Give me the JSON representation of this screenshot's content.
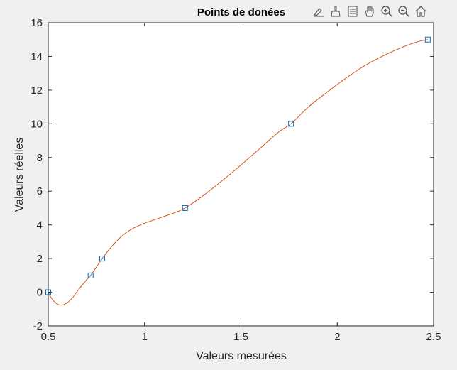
{
  "toolbar": {
    "buttons": [
      {
        "icon": "edit-plot-icon"
      },
      {
        "icon": "brush-icon"
      },
      {
        "icon": "data-tips-icon"
      },
      {
        "icon": "pan-hand-icon"
      },
      {
        "icon": "zoom-in-icon"
      },
      {
        "icon": "zoom-out-icon"
      },
      {
        "icon": "home-icon"
      }
    ]
  },
  "chart_data": {
    "type": "line",
    "title": "Points de donées",
    "xlabel": "Valeurs mesurées",
    "ylabel": "Valeurs réelles",
    "xlim": [
      0.5,
      2.5
    ],
    "ylim": [
      -2,
      16
    ],
    "xticks": [
      "0.5",
      "1",
      "1.5",
      "2",
      "2.5"
    ],
    "yticks": [
      "-2",
      "0",
      "2",
      "4",
      "6",
      "8",
      "10",
      "12",
      "14",
      "16"
    ],
    "grid": false,
    "series": [
      {
        "kind": "markers",
        "marker": "square",
        "color": "#0072bd",
        "x": [
          0.5,
          0.72,
          0.78,
          1.21,
          1.76,
          2.47
        ],
        "y": [
          0,
          1,
          2,
          5,
          10,
          15
        ]
      },
      {
        "kind": "curve",
        "color": "#d95319",
        "x": [
          0.5,
          0.52,
          0.55,
          0.58,
          0.62,
          0.66,
          0.7,
          0.72,
          0.75,
          0.78,
          0.82,
          0.86,
          0.9,
          0.95,
          1.0,
          1.05,
          1.1,
          1.15,
          1.21,
          1.3,
          1.4,
          1.5,
          1.6,
          1.7,
          1.76,
          1.85,
          1.95,
          2.05,
          2.15,
          2.25,
          2.35,
          2.42,
          2.47
        ],
        "y": [
          0,
          -0.4,
          -0.72,
          -0.74,
          -0.4,
          0.2,
          0.75,
          1.0,
          1.5,
          2.0,
          2.6,
          3.1,
          3.5,
          3.85,
          4.1,
          4.3,
          4.5,
          4.7,
          5.0,
          5.7,
          6.6,
          7.55,
          8.55,
          9.55,
          10.0,
          11.0,
          11.9,
          12.75,
          13.5,
          14.1,
          14.6,
          14.88,
          15.0
        ]
      }
    ]
  }
}
